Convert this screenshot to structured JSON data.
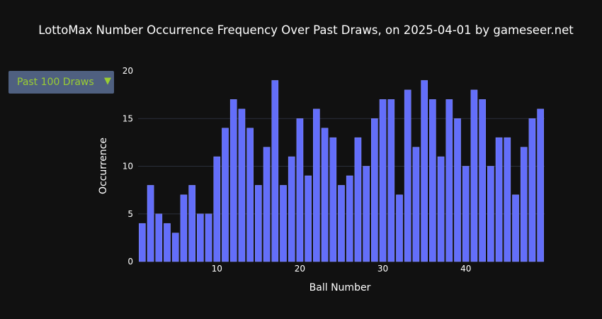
{
  "title": "LottoMax Number Occurrence Frequency Over Past Draws, on 2025-04-01 by gameseer.net",
  "dropdown": {
    "selected": "Past 100 Draws",
    "arrow": "▼"
  },
  "colors": {
    "background": "#111111",
    "bar": "#636efa",
    "dropdown_bg": "#4f6080",
    "dropdown_text": "#9acd32",
    "grid": "#2a2f3a"
  },
  "chart_data": {
    "type": "bar",
    "xlabel": "Ball Number",
    "ylabel": "Occurrence",
    "x": [
      1,
      2,
      3,
      4,
      5,
      6,
      7,
      8,
      9,
      10,
      11,
      12,
      13,
      14,
      15,
      16,
      17,
      18,
      19,
      20,
      21,
      22,
      23,
      24,
      25,
      26,
      27,
      28,
      29,
      30,
      31,
      32,
      33,
      34,
      35,
      36,
      37,
      38,
      39,
      40,
      41,
      42,
      43,
      44,
      45,
      46,
      47,
      48,
      49
    ],
    "values": [
      4,
      8,
      5,
      4,
      3,
      7,
      8,
      5,
      5,
      11,
      14,
      17,
      16,
      14,
      8,
      12,
      19,
      8,
      11,
      15,
      9,
      16,
      14,
      13,
      8,
      9,
      13,
      10,
      15,
      17,
      17,
      7,
      18,
      12,
      19,
      17,
      11,
      17,
      15,
      10,
      18,
      17,
      10,
      13,
      13,
      7,
      12,
      15,
      16
    ],
    "xlim": [
      0.5,
      49.5
    ],
    "ylim": [
      0,
      20
    ],
    "xticks": [
      10,
      20,
      30,
      40
    ],
    "yticks": [
      0,
      5,
      10,
      15,
      20
    ],
    "grid": true
  }
}
